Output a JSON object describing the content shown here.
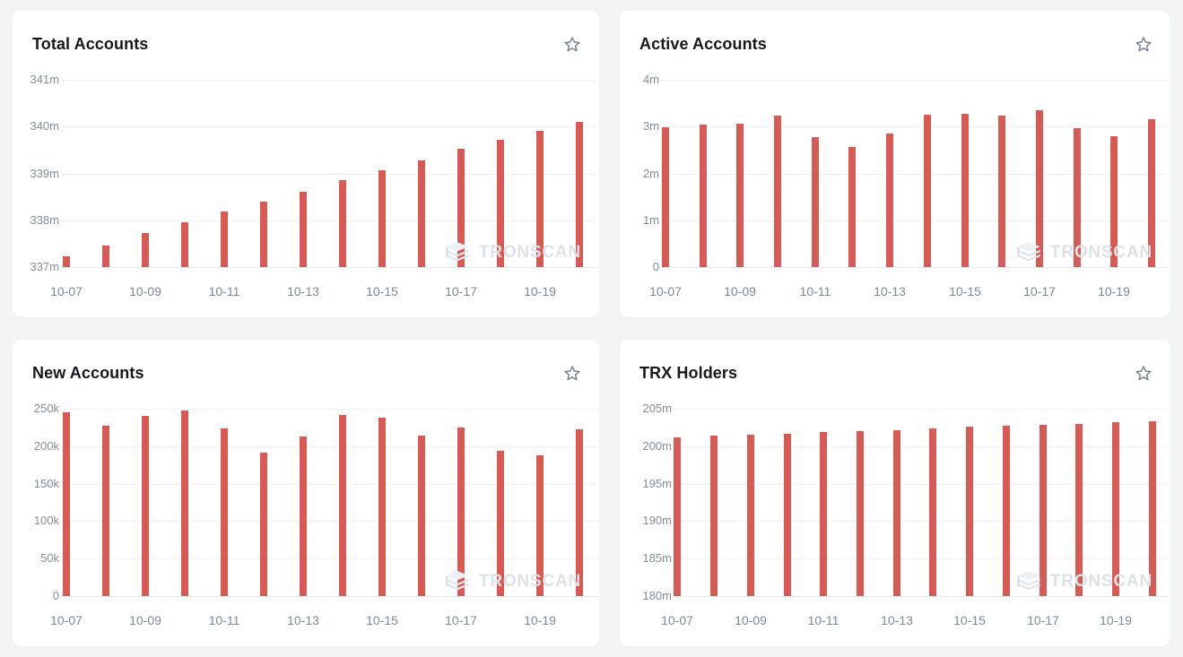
{
  "watermark_text": "TRONSCAN",
  "colors": {
    "bar": "#d85a55",
    "card_background": "#ffffff",
    "page_background": "#f3f4f6",
    "axis_label": "#7f8a97",
    "title_text": "#15181e",
    "gridline": "#f1f2f5",
    "star_outline": "#75808d",
    "watermark": "#dde2e9"
  },
  "chart_data": [
    {
      "type": "bar",
      "title": "Total Accounts",
      "categories": [
        "10-07",
        "10-08",
        "10-09",
        "10-10",
        "10-11",
        "10-12",
        "10-13",
        "10-14",
        "10-15",
        "10-16",
        "10-17",
        "10-18",
        "10-19",
        "10-20"
      ],
      "values": [
        337.23,
        337.46,
        337.72,
        337.96,
        338.18,
        338.4,
        338.6,
        338.85,
        339.07,
        339.28,
        339.52,
        339.72,
        339.9,
        340.1
      ],
      "values_unit": "millions",
      "ylim": [
        337,
        341
      ],
      "yticks": [
        {
          "value": 341,
          "label": "341m"
        },
        {
          "value": 340,
          "label": "340m"
        },
        {
          "value": 339,
          "label": "339m"
        },
        {
          "value": 338,
          "label": "338m"
        },
        {
          "value": 337,
          "label": "337m"
        }
      ],
      "x_axis": {
        "tick_indices": [
          0,
          2,
          4,
          6,
          8,
          10,
          12
        ],
        "tick_labels": [
          "10-07",
          "10-09",
          "10-11",
          "10-13",
          "10-15",
          "10-17",
          "10-19"
        ]
      },
      "grid": true,
      "legend": false
    },
    {
      "type": "bar",
      "title": "Active Accounts",
      "categories": [
        "10-07",
        "10-08",
        "10-09",
        "10-10",
        "10-11",
        "10-12",
        "10-13",
        "10-14",
        "10-15",
        "10-16",
        "10-17",
        "10-18",
        "10-19",
        "10-20"
      ],
      "values": [
        2.98,
        3.05,
        3.06,
        3.23,
        2.78,
        2.56,
        2.85,
        3.25,
        3.28,
        3.23,
        3.34,
        2.96,
        2.79,
        3.15
      ],
      "values_unit": "millions",
      "ylim": [
        0,
        4
      ],
      "yticks": [
        {
          "value": 4,
          "label": "4m"
        },
        {
          "value": 3,
          "label": "3m"
        },
        {
          "value": 2,
          "label": "2m"
        },
        {
          "value": 1,
          "label": "1m"
        },
        {
          "value": 0,
          "label": "0"
        }
      ],
      "x_axis": {
        "tick_indices": [
          0,
          2,
          4,
          6,
          8,
          10,
          12
        ],
        "tick_labels": [
          "10-07",
          "10-09",
          "10-11",
          "10-13",
          "10-15",
          "10-17",
          "10-19"
        ]
      },
      "grid": true,
      "legend": false
    },
    {
      "type": "bar",
      "title": "New Accounts",
      "categories": [
        "10-07",
        "10-08",
        "10-09",
        "10-10",
        "10-11",
        "10-12",
        "10-13",
        "10-14",
        "10-15",
        "10-16",
        "10-17",
        "10-18",
        "10-19",
        "10-20"
      ],
      "values": [
        245,
        227,
        240,
        248,
        224,
        191,
        213,
        242,
        238,
        214,
        225,
        194,
        188,
        222
      ],
      "values_unit": "thousands",
      "ylim": [
        0,
        250
      ],
      "yticks": [
        {
          "value": 250,
          "label": "250k"
        },
        {
          "value": 200,
          "label": "200k"
        },
        {
          "value": 150,
          "label": "150k"
        },
        {
          "value": 100,
          "label": "100k"
        },
        {
          "value": 50,
          "label": "50k"
        },
        {
          "value": 0,
          "label": "0"
        }
      ],
      "x_axis": {
        "tick_indices": [
          0,
          2,
          4,
          6,
          8,
          10,
          12
        ],
        "tick_labels": [
          "10-07",
          "10-09",
          "10-11",
          "10-13",
          "10-15",
          "10-17",
          "10-19"
        ]
      },
      "grid": true,
      "legend": false
    },
    {
      "type": "bar",
      "title": "TRX Holders",
      "categories": [
        "10-07",
        "10-08",
        "10-09",
        "10-10",
        "10-11",
        "10-12",
        "10-13",
        "10-14",
        "10-15",
        "10-16",
        "10-17",
        "10-18",
        "10-19",
        "10-20"
      ],
      "values": [
        201.2,
        201.4,
        201.5,
        201.7,
        201.9,
        202.0,
        202.1,
        202.4,
        202.6,
        202.7,
        202.85,
        203.0,
        203.2,
        203.3
      ],
      "values_unit": "millions",
      "ylim": [
        180,
        205
      ],
      "yticks": [
        {
          "value": 205,
          "label": "205m"
        },
        {
          "value": 200,
          "label": "200m"
        },
        {
          "value": 195,
          "label": "195m"
        },
        {
          "value": 190,
          "label": "190m"
        },
        {
          "value": 185,
          "label": "185m"
        },
        {
          "value": 180,
          "label": "180m"
        }
      ],
      "x_axis": {
        "tick_indices": [
          0,
          2,
          4,
          6,
          8,
          10,
          12
        ],
        "tick_labels": [
          "10-07",
          "10-09",
          "10-11",
          "10-13",
          "10-15",
          "10-17",
          "10-19"
        ]
      },
      "grid": true,
      "legend": false
    }
  ]
}
